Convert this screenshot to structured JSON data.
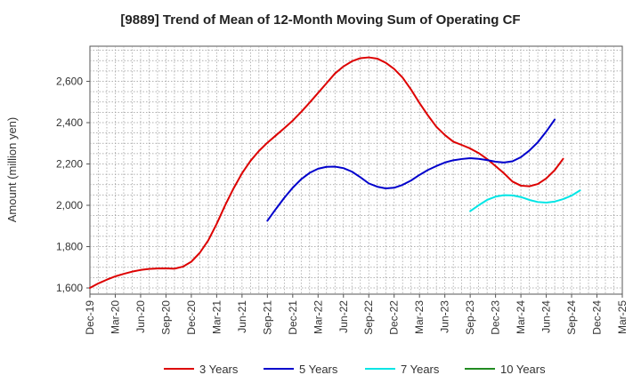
{
  "chart_data": {
    "type": "line",
    "title": "[9889]  Trend of Mean of 12-Month Moving Sum of Operating CF",
    "ylabel": "Amount (million yen)",
    "xlabel": "",
    "x_ticks": [
      "Dec-19",
      "Mar-20",
      "Jun-20",
      "Sep-20",
      "Dec-20",
      "Mar-21",
      "Jun-21",
      "Sep-21",
      "Dec-21",
      "Mar-22",
      "Jun-22",
      "Sep-22",
      "Dec-22",
      "Mar-23",
      "Jun-23",
      "Sep-23",
      "Dec-23",
      "Mar-24",
      "Jun-24",
      "Sep-24",
      "Dec-24",
      "Mar-25"
    ],
    "y_ticks": [
      1600,
      1800,
      2000,
      2200,
      2400,
      2600
    ],
    "y_tick_labels": [
      "1,600",
      "1,800",
      "2,000",
      "2,200",
      "2,400",
      "2,600"
    ],
    "ylim": [
      1570,
      2770
    ],
    "grid": true,
    "legend_position": "bottom",
    "series": [
      {
        "name": "3 Years",
        "color": "#dd0000",
        "start_index": 0,
        "values": [
          1600,
          1622,
          1640,
          1656,
          1668,
          1679,
          1687,
          1692,
          1694,
          1695,
          1693,
          1703,
          1727,
          1770,
          1830,
          1910,
          2000,
          2082,
          2155,
          2215,
          2263,
          2303,
          2338,
          2373,
          2410,
          2452,
          2497,
          2544,
          2591,
          2638,
          2672,
          2697,
          2712,
          2716,
          2710,
          2690,
          2660,
          2618,
          2560,
          2495,
          2435,
          2380,
          2340,
          2308,
          2292,
          2275,
          2253,
          2224,
          2190,
          2155,
          2115,
          2095,
          2092,
          2103,
          2130,
          2170,
          2225
        ]
      },
      {
        "name": "5 Years",
        "color": "#0000cc",
        "start_index": 21,
        "values": [
          1925,
          1982,
          2036,
          2085,
          2126,
          2157,
          2177,
          2186,
          2187,
          2180,
          2163,
          2136,
          2106,
          2090,
          2082,
          2085,
          2099,
          2120,
          2147,
          2171,
          2190,
          2207,
          2218,
          2224,
          2228,
          2225,
          2219,
          2211,
          2207,
          2213,
          2233,
          2265,
          2305,
          2357,
          2415
        ]
      },
      {
        "name": "7 Years",
        "color": "#00e5e5",
        "start_index": 45,
        "values": [
          1972,
          2000,
          2026,
          2042,
          2049,
          2048,
          2040,
          2026,
          2016,
          2013,
          2018,
          2030,
          2047,
          2072
        ]
      },
      {
        "name": "10 Years",
        "color": "#228b22",
        "start_index": 0,
        "values": []
      }
    ]
  }
}
